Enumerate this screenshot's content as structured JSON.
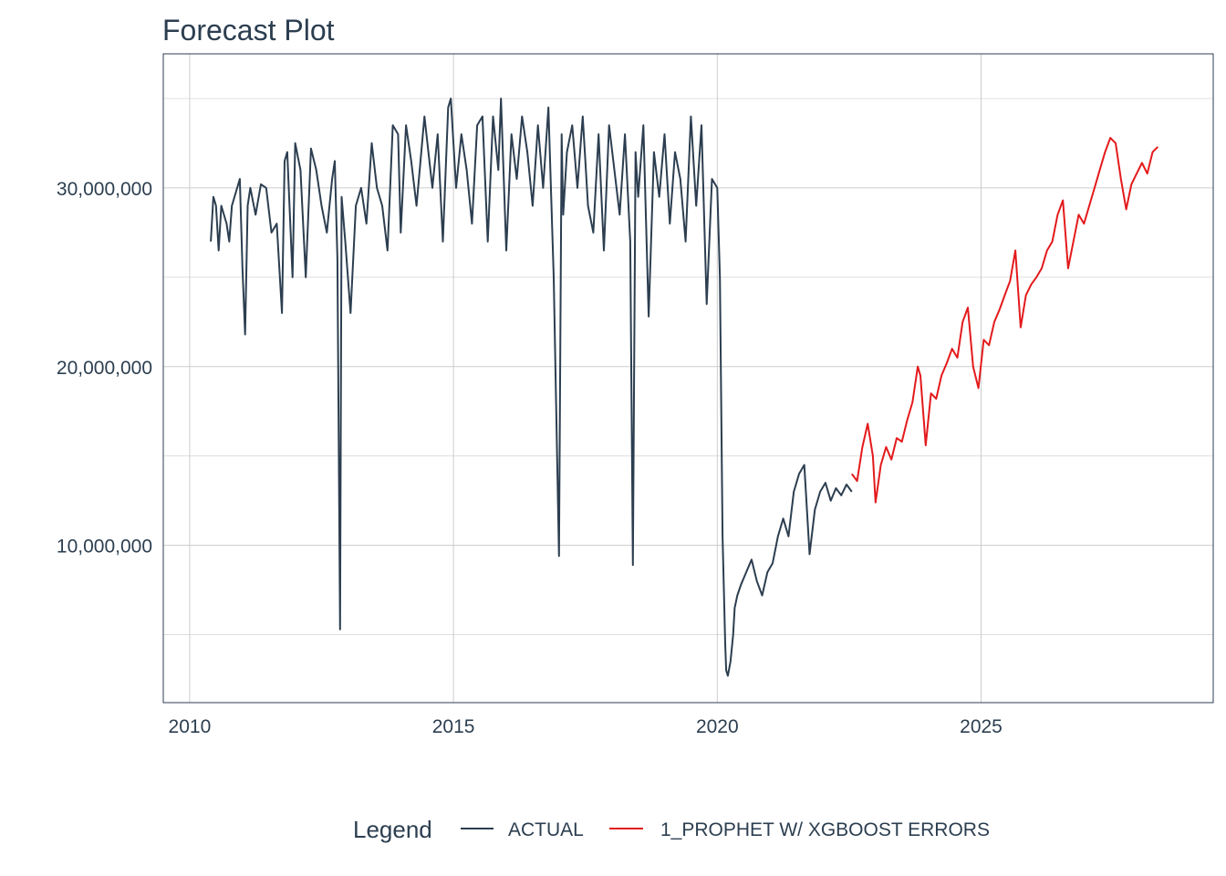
{
  "chart_data": {
    "type": "line",
    "title": "Forecast Plot",
    "xlabel": "",
    "ylabel": "",
    "xlim": [
      2009.5,
      2029.4
    ],
    "ylim": [
      1200000,
      37500000
    ],
    "x_ticks": [
      2010,
      2015,
      2020,
      2025
    ],
    "x_tick_labels": [
      "2010",
      "2015",
      "2020",
      "2025"
    ],
    "y_ticks": [
      10000000,
      20000000,
      30000000
    ],
    "y_tick_labels": [
      "10,000,000",
      "20,000,000",
      "30,000,000"
    ],
    "grid": true,
    "legend": {
      "title": "Legend",
      "position": "bottom",
      "entries": [
        "ACTUAL",
        "1_PROPHET W/ XGBOOST ERRORS"
      ]
    },
    "series": [
      {
        "name": "ACTUAL",
        "color": "#2c3e50",
        "x": [
          2010.4,
          2010.45,
          2010.5,
          2010.55,
          2010.6,
          2010.7,
          2010.75,
          2010.8,
          2010.9,
          2010.95,
          2011.0,
          2011.05,
          2011.1,
          2011.15,
          2011.25,
          2011.35,
          2011.45,
          2011.55,
          2011.65,
          2011.75,
          2011.8,
          2011.85,
          2011.95,
          2012.0,
          2012.1,
          2012.2,
          2012.3,
          2012.4,
          2012.5,
          2012.6,
          2012.7,
          2012.75,
          2012.8,
          2012.85,
          2012.88,
          2012.95,
          2013.05,
          2013.15,
          2013.25,
          2013.35,
          2013.45,
          2013.55,
          2013.65,
          2013.75,
          2013.85,
          2013.95,
          2014.0,
          2014.1,
          2014.2,
          2014.3,
          2014.45,
          2014.6,
          2014.7,
          2014.8,
          2014.9,
          2014.95,
          2015.05,
          2015.15,
          2015.25,
          2015.35,
          2015.45,
          2015.55,
          2015.65,
          2015.75,
          2015.85,
          2015.9,
          2016.0,
          2016.1,
          2016.2,
          2016.3,
          2016.4,
          2016.5,
          2016.6,
          2016.7,
          2016.8,
          2016.9,
          2017.0,
          2017.05,
          2017.08,
          2017.15,
          2017.25,
          2017.35,
          2017.45,
          2017.55,
          2017.65,
          2017.75,
          2017.85,
          2017.95,
          2018.05,
          2018.15,
          2018.25,
          2018.35,
          2018.4,
          2018.45,
          2018.5,
          2018.6,
          2018.7,
          2018.8,
          2018.9,
          2019.0,
          2019.1,
          2019.2,
          2019.3,
          2019.4,
          2019.5,
          2019.6,
          2019.7,
          2019.8,
          2019.9,
          2020.0,
          2020.05,
          2020.1,
          2020.15,
          2020.17,
          2020.2,
          2020.25,
          2020.3,
          2020.33,
          2020.38,
          2020.45,
          2020.55,
          2020.65,
          2020.75,
          2020.85,
          2020.95,
          2021.05,
          2021.15,
          2021.25,
          2021.35,
          2021.45,
          2021.55,
          2021.65,
          2021.75,
          2021.85,
          2021.95,
          2022.05,
          2022.15,
          2022.25,
          2022.35,
          2022.45,
          2022.55
        ],
        "values": [
          27000000,
          29500000,
          29000000,
          26500000,
          29000000,
          28000000,
          27000000,
          29000000,
          30000000,
          30500000,
          25500000,
          21800000,
          29000000,
          30000000,
          28500000,
          30200000,
          30000000,
          27500000,
          28000000,
          23000000,
          31500000,
          32000000,
          25000000,
          32500000,
          31000000,
          25000000,
          32200000,
          31000000,
          29000000,
          27500000,
          30500000,
          31500000,
          26000000,
          5300000,
          29500000,
          27000000,
          23000000,
          29000000,
          30000000,
          28000000,
          32500000,
          30000000,
          29000000,
          26500000,
          33500000,
          33000000,
          27500000,
          33500000,
          31500000,
          29000000,
          34000000,
          30000000,
          33000000,
          27000000,
          34500000,
          35000000,
          30000000,
          33000000,
          31000000,
          28000000,
          33500000,
          34000000,
          27000000,
          34000000,
          31000000,
          35000000,
          26500000,
          33000000,
          30500000,
          34000000,
          32000000,
          29000000,
          33500000,
          30000000,
          34500000,
          25000000,
          9400000,
          33000000,
          28500000,
          32000000,
          33500000,
          30000000,
          34000000,
          29000000,
          27500000,
          33000000,
          26500000,
          33500000,
          31000000,
          28500000,
          33000000,
          27000000,
          8900000,
          32000000,
          29500000,
          33500000,
          22800000,
          32000000,
          29500000,
          33000000,
          28000000,
          32000000,
          30500000,
          27000000,
          34000000,
          29000000,
          33500000,
          23500000,
          30500000,
          30000000,
          25000000,
          10500000,
          4500000,
          3000000,
          2700000,
          3500000,
          5000000,
          6500000,
          7200000,
          7800000,
          8500000,
          9200000,
          8000000,
          7200000,
          8500000,
          9000000,
          10500000,
          11500000,
          10500000,
          13000000,
          14000000,
          14500000,
          9500000,
          12000000,
          13000000,
          13500000,
          12500000,
          13200000,
          12800000,
          13400000,
          13000000
        ]
      },
      {
        "name": "1_PROPHET W/ XGBOOST ERRORS",
        "color": "#e31a1c",
        "x": [
          2022.55,
          2022.65,
          2022.75,
          2022.85,
          2022.95,
          2023.0,
          2023.1,
          2023.2,
          2023.3,
          2023.4,
          2023.5,
          2023.6,
          2023.7,
          2023.8,
          2023.85,
          2023.95,
          2024.05,
          2024.15,
          2024.25,
          2024.35,
          2024.45,
          2024.55,
          2024.65,
          2024.75,
          2024.85,
          2024.95,
          2025.05,
          2025.15,
          2025.25,
          2025.35,
          2025.45,
          2025.55,
          2025.65,
          2025.75,
          2025.85,
          2025.95,
          2026.05,
          2026.15,
          2026.25,
          2026.35,
          2026.45,
          2026.55,
          2026.65,
          2026.75,
          2026.85,
          2026.95,
          2027.05,
          2027.15,
          2027.25,
          2027.35,
          2027.45,
          2027.55,
          2027.65,
          2027.75,
          2027.85,
          2027.95,
          2028.05,
          2028.15,
          2028.25,
          2028.35
        ],
        "values": [
          14000000,
          13600000,
          15500000,
          16800000,
          15000000,
          12400000,
          14500000,
          15500000,
          14800000,
          16000000,
          15800000,
          17000000,
          18000000,
          20000000,
          19500000,
          15600000,
          18500000,
          18200000,
          19500000,
          20200000,
          21000000,
          20500000,
          22500000,
          23300000,
          20000000,
          18800000,
          21500000,
          21200000,
          22500000,
          23200000,
          24000000,
          24800000,
          26500000,
          22200000,
          24000000,
          24600000,
          25000000,
          25500000,
          26500000,
          27000000,
          28500000,
          29300000,
          25500000,
          27000000,
          28500000,
          28000000,
          29000000,
          30000000,
          31000000,
          32000000,
          32800000,
          32500000,
          30500000,
          28800000,
          30200000,
          30800000,
          31400000,
          30800000,
          32000000,
          32300000
        ]
      }
    ]
  }
}
